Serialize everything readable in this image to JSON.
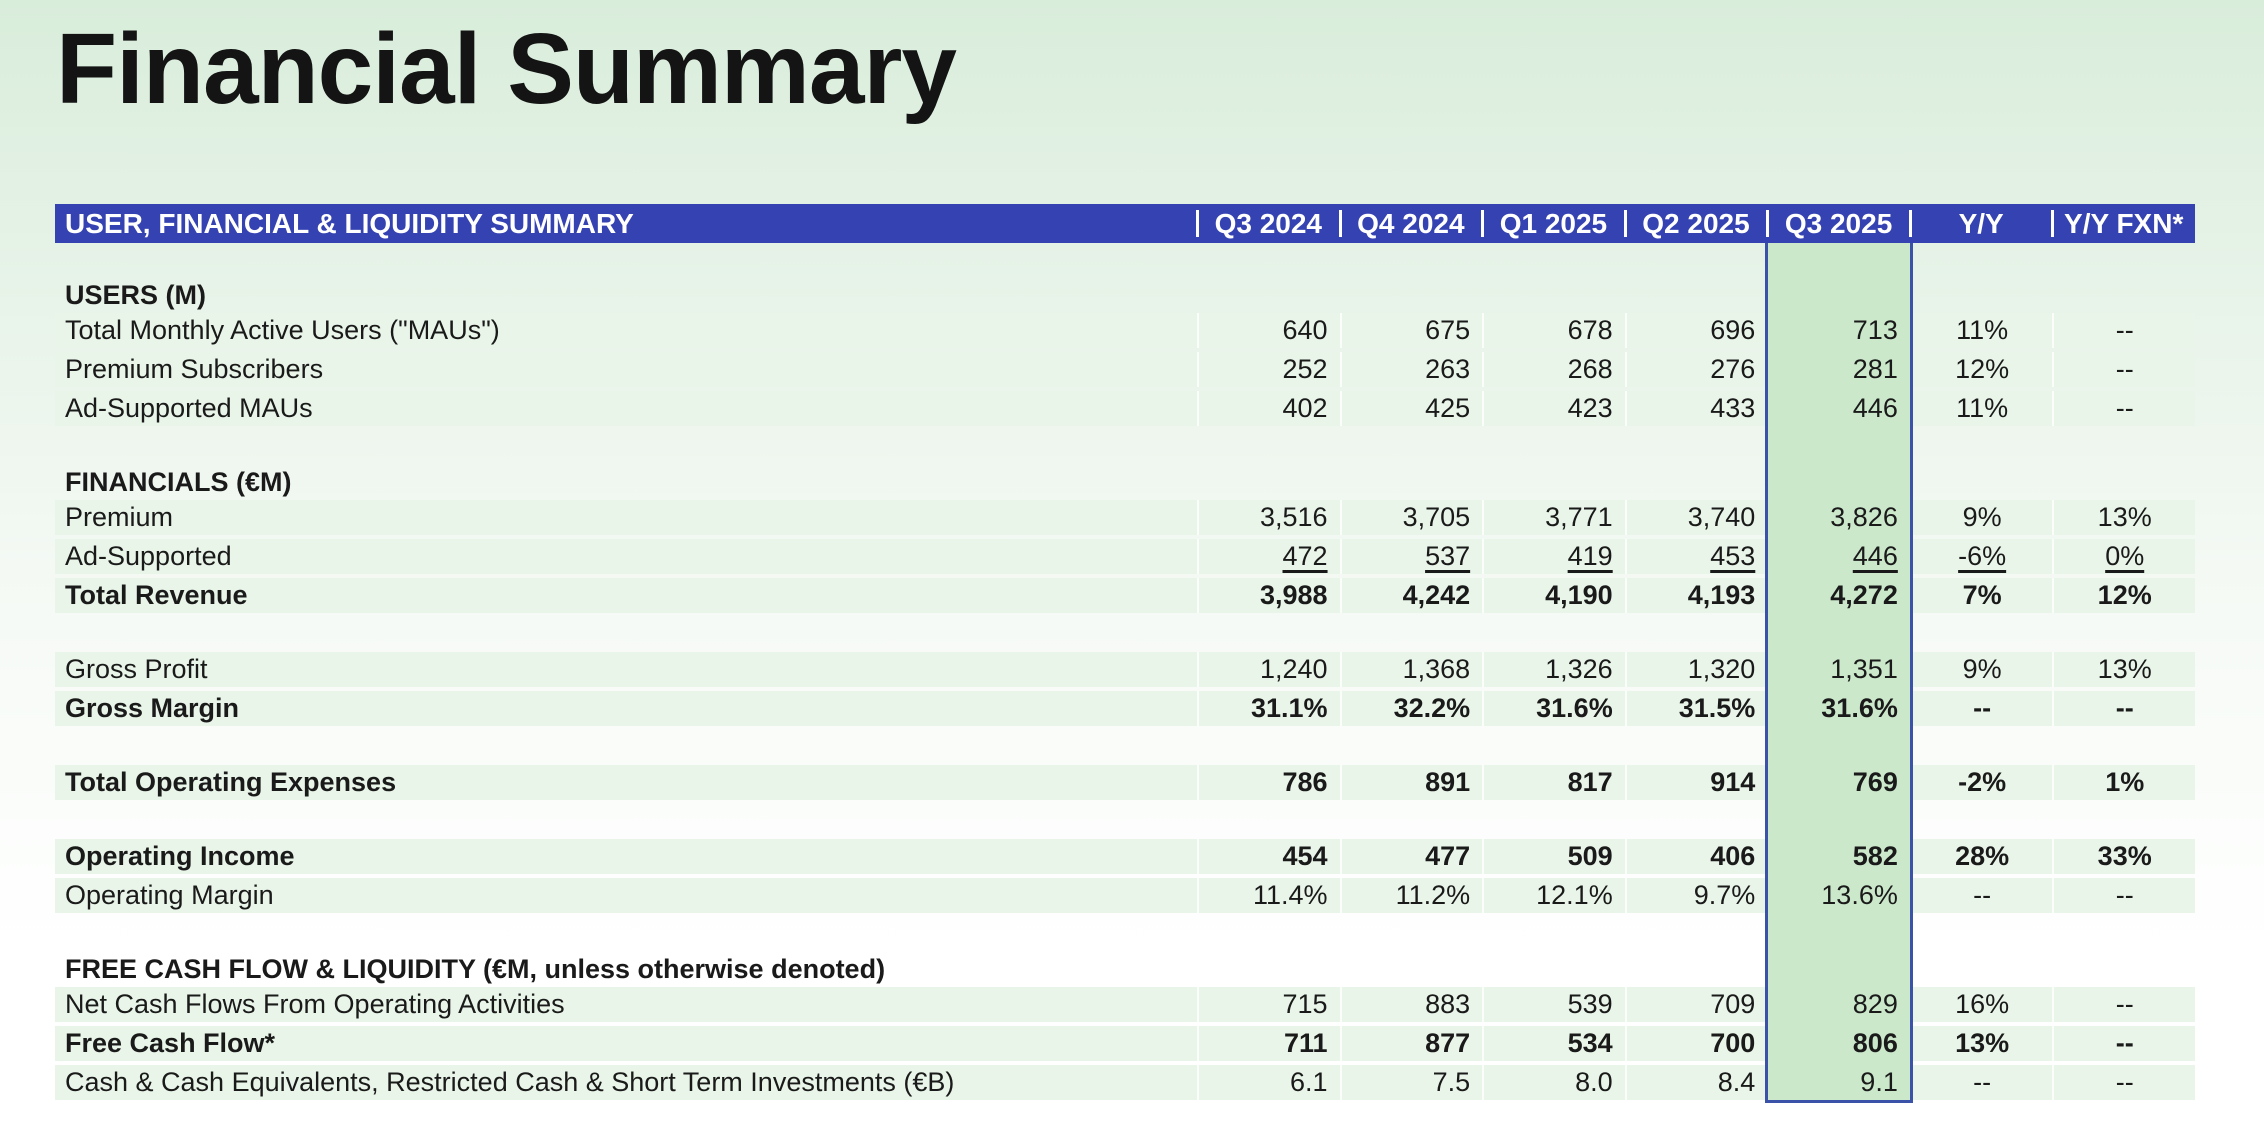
{
  "page": {
    "title": "Financial Summary"
  },
  "colors": {
    "header_bar_blue": "#3542b1",
    "header_text": "#ffffff",
    "row_band_green": "#e9f5e9",
    "highlight_fill_green": "#cbe8cb",
    "highlight_border_blue": "#3a53a8",
    "background_top_green": "#d9eddb",
    "background_bottom": "#ffffff",
    "text": "#1a1a1a"
  },
  "table": {
    "header_title": "USER, FINANCIAL & LIQUIDITY SUMMARY",
    "columns": [
      "Q3 2024",
      "Q4 2024",
      "Q1 2025",
      "Q2 2025",
      "Q3 2025",
      "Y/Y",
      "Y/Y FXN*"
    ],
    "highlight_column": "Q3 2025",
    "rows": [
      {
        "type": "spacer"
      },
      {
        "type": "section",
        "label": "USERS (M)"
      },
      {
        "type": "data",
        "label": "Total Monthly Active Users (\"MAUs\")",
        "values": [
          "640",
          "675",
          "678",
          "696",
          "713",
          "11%",
          "--"
        ]
      },
      {
        "type": "data",
        "label": "Premium Subscribers",
        "values": [
          "252",
          "263",
          "268",
          "276",
          "281",
          "12%",
          "--"
        ]
      },
      {
        "type": "data",
        "label": "Ad-Supported MAUs",
        "values": [
          "402",
          "425",
          "423",
          "433",
          "446",
          "11%",
          "--"
        ]
      },
      {
        "type": "spacer"
      },
      {
        "type": "section",
        "label": "FINANCIALS (€M)"
      },
      {
        "type": "data",
        "label": "Premium",
        "values": [
          "3,516",
          "3,705",
          "3,771",
          "3,740",
          "3,826",
          "9%",
          "13%"
        ]
      },
      {
        "type": "data",
        "label": "Ad-Supported",
        "underline": true,
        "values": [
          "472",
          "537",
          "419",
          "453",
          "446",
          "-6%",
          "0%"
        ]
      },
      {
        "type": "data",
        "label": "Total Revenue",
        "bold": true,
        "values": [
          "3,988",
          "4,242",
          "4,190",
          "4,193",
          "4,272",
          "7%",
          "12%"
        ]
      },
      {
        "type": "spacer"
      },
      {
        "type": "data",
        "label": "Gross Profit",
        "values": [
          "1,240",
          "1,368",
          "1,326",
          "1,320",
          "1,351",
          "9%",
          "13%"
        ]
      },
      {
        "type": "data",
        "label": "Gross Margin",
        "bold": true,
        "values": [
          "31.1%",
          "32.2%",
          "31.6%",
          "31.5%",
          "31.6%",
          "--",
          "--"
        ]
      },
      {
        "type": "spacer"
      },
      {
        "type": "data",
        "label": "Total Operating Expenses",
        "bold": true,
        "values": [
          "786",
          "891",
          "817",
          "914",
          "769",
          "-2%",
          "1%"
        ]
      },
      {
        "type": "spacer"
      },
      {
        "type": "data",
        "label": "Operating Income",
        "bold": true,
        "values": [
          "454",
          "477",
          "509",
          "406",
          "582",
          "28%",
          "33%"
        ]
      },
      {
        "type": "data",
        "label": "Operating Margin",
        "values": [
          "11.4%",
          "11.2%",
          "12.1%",
          "9.7%",
          "13.6%",
          "--",
          "--"
        ]
      },
      {
        "type": "spacer"
      },
      {
        "type": "section",
        "label": "FREE CASH FLOW & LIQUIDITY (€M, unless otherwise denoted)"
      },
      {
        "type": "data",
        "label": "Net Cash Flows From Operating Activities",
        "values": [
          "715",
          "883",
          "539",
          "709",
          "829",
          "16%",
          "--"
        ]
      },
      {
        "type": "data",
        "label": "Free Cash Flow*",
        "bold": true,
        "values": [
          "711",
          "877",
          "534",
          "700",
          "806",
          "13%",
          "--"
        ]
      },
      {
        "type": "data",
        "label": "Cash & Cash Equivalents, Restricted Cash & Short Term Investments (€B)",
        "values": [
          "6.1",
          "7.5",
          "8.0",
          "8.4",
          "9.1",
          "--",
          "--"
        ]
      }
    ]
  }
}
